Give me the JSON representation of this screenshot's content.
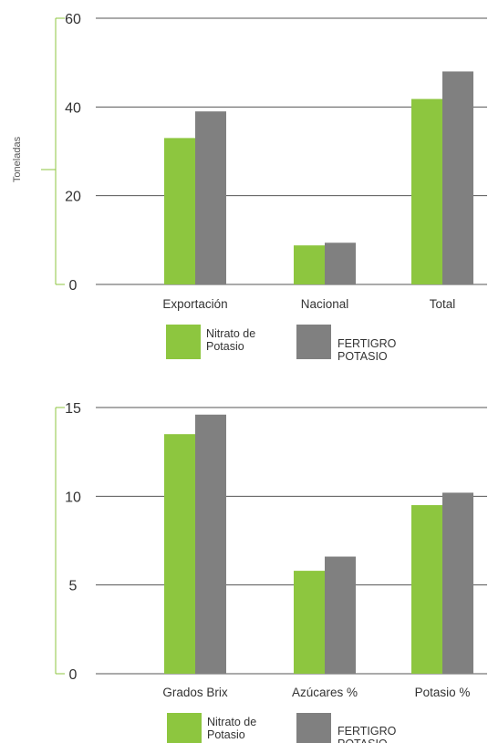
{
  "chart_data": [
    {
      "type": "bar",
      "ylabel": "Toneladas",
      "ylim": [
        0,
        60
      ],
      "yticks": [
        0,
        20,
        40,
        60
      ],
      "grid": true,
      "categories": [
        "Exportación",
        "Nacional",
        "Total"
      ],
      "series": [
        {
          "name": "Nitrato de Potasio",
          "color": "#8dc63f",
          "values": [
            33,
            8.8,
            41.8
          ]
        },
        {
          "name": "FERTIGRO POTASIO",
          "color": "#808080",
          "values": [
            39,
            9.4,
            48
          ]
        }
      ],
      "legend_placement": "bottom"
    },
    {
      "type": "bar",
      "ylabel": "",
      "ylim": [
        0,
        15
      ],
      "yticks": [
        0,
        5,
        10,
        15
      ],
      "grid": true,
      "categories": [
        "Grados Brix",
        "Azúcares %",
        "Potasio %"
      ],
      "series": [
        {
          "name": "Nitrato de Potasio",
          "color": "#8dc63f",
          "values": [
            13.5,
            5.8,
            9.5
          ]
        },
        {
          "name": "FERTIGRO POTASIO",
          "color": "#808080",
          "values": [
            14.6,
            6.6,
            10.2
          ]
        }
      ],
      "legend_placement": "bottom"
    }
  ],
  "colors": {
    "axis_accent": "#8dc63f",
    "gridline": "#555555"
  }
}
